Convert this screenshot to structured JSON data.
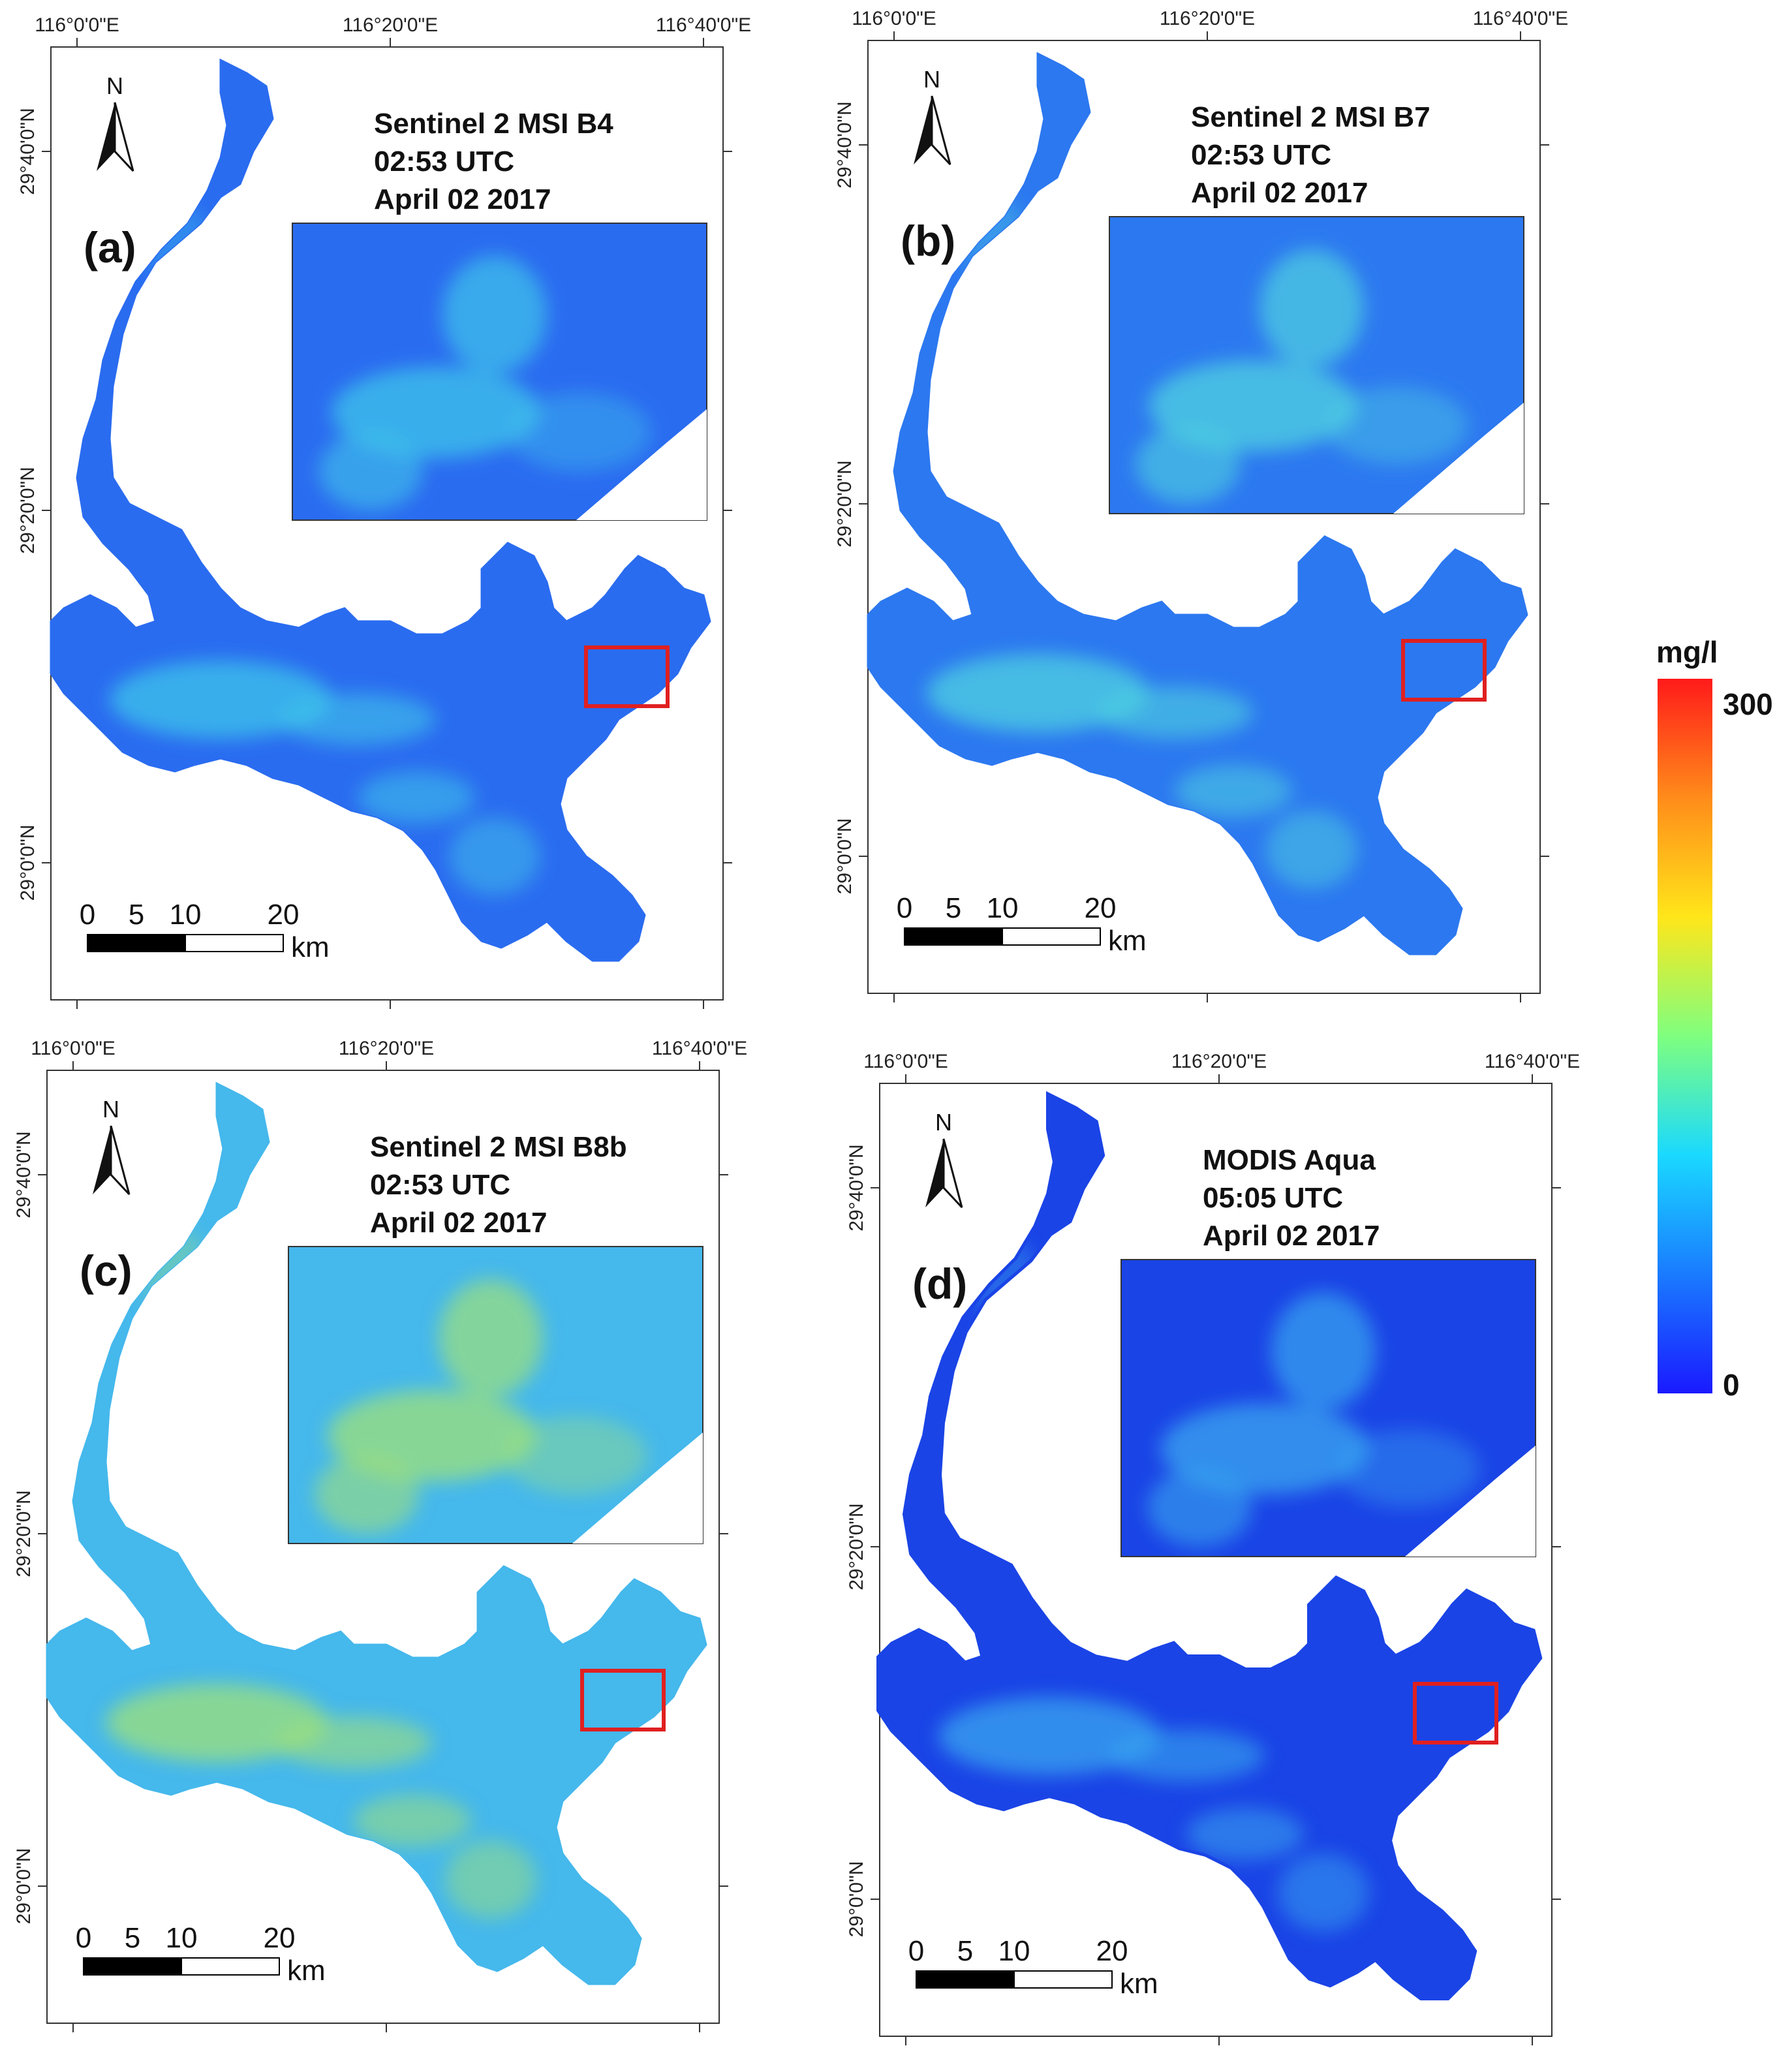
{
  "panels": [
    {
      "id": "a",
      "letter": "(a)",
      "title_lines": [
        "Sentinel 2 MSI B4",
        "02:53 UTC",
        "April 02 2017"
      ],
      "lon_ticks": [
        "116°0'0\"E",
        "116°20'0\"E",
        "116°40'0\"E"
      ],
      "lat_ticks": [
        "29°40'0\"N",
        "29°20'0\"N",
        "29°0'0\"N"
      ],
      "color_tone": "#2a6cf0",
      "plume_color": "#3fc4ea",
      "scale_labels": [
        "0",
        "5",
        "10",
        "20"
      ],
      "scale_unit": "km",
      "north_label": "N"
    },
    {
      "id": "b",
      "letter": "(b)",
      "title_lines": [
        "Sentinel 2 MSI B7",
        "02:53 UTC",
        "April 02 2017"
      ],
      "lon_ticks": [
        "116°0'0\"E",
        "116°20'0\"E",
        "116°40'0\"E"
      ],
      "lat_ticks": [
        "29°40'0\"N",
        "29°20'0\"N",
        "29°0'0\"N"
      ],
      "color_tone": "#2c78f0",
      "plume_color": "#4fd2e0",
      "scale_labels": [
        "0",
        "5",
        "10",
        "20"
      ],
      "scale_unit": "km",
      "north_label": "N"
    },
    {
      "id": "c",
      "letter": "(c)",
      "title_lines": [
        "Sentinel 2 MSI B8b",
        "02:53 UTC",
        "April 02 2017"
      ],
      "lon_ticks": [
        "116°0'0\"E",
        "116°20'0\"E",
        "116°40'0\"E"
      ],
      "lat_ticks": [
        "29°40'0\"N",
        "29°20'0\"N",
        "29°0'0\"N"
      ],
      "color_tone": "#45b8ec",
      "plume_color": "#9ee07a",
      "scale_labels": [
        "0",
        "5",
        "10",
        "20"
      ],
      "scale_unit": "km",
      "north_label": "N"
    },
    {
      "id": "d",
      "letter": "(d)",
      "title_lines": [
        "MODIS Aqua",
        "05:05 UTC",
        "April 02 2017"
      ],
      "lon_ticks": [
        "116°0'0\"E",
        "116°20'0\"E",
        "116°40'0\"E"
      ],
      "lat_ticks": [
        "29°40'0\"N",
        "29°20'0\"N",
        "29°0'0\"N"
      ],
      "color_tone": "#1a44e6",
      "plume_color": "#38a6ef",
      "scale_labels": [
        "0",
        "5",
        "10",
        "20"
      ],
      "scale_unit": "km",
      "north_label": "N"
    }
  ],
  "legend": {
    "unit": "mg/l",
    "max_label": "300",
    "min_label": "0",
    "max_value": 300,
    "min_value": 0,
    "colors": [
      "#1a1aff",
      "#1a7bff",
      "#1ad9ff",
      "#7fff7f",
      "#ffe61a",
      "#ff8c1a",
      "#ff1a1a"
    ]
  },
  "highlight_color": "#e02020"
}
